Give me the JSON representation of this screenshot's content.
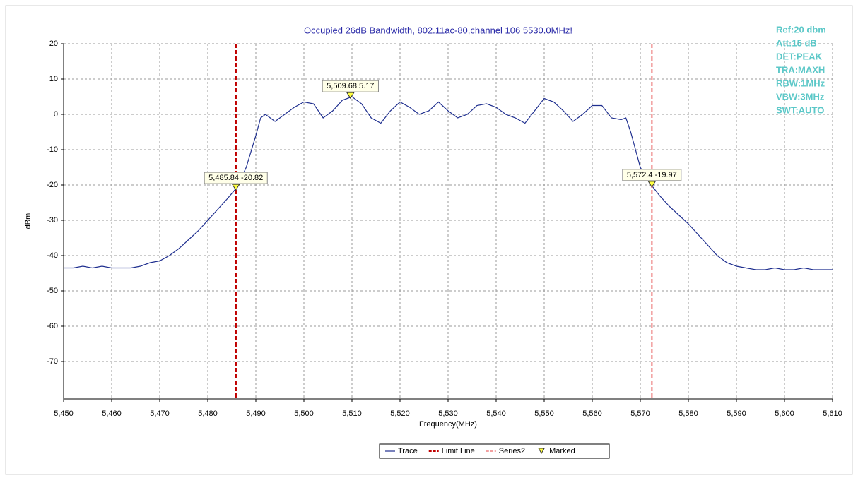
{
  "chart_data": {
    "type": "line",
    "title": "Occupied 26dB Bandwidth, 802.11ac-80,channel 106  5530.0MHz!",
    "x_label": "Frequency(MHz)",
    "y_label": "dBm",
    "annotations": [
      "Ref:20 dbm",
      "Att:15 dB",
      "DET:PEAK",
      "TRA:MAXH",
      "RBW:1MHz",
      "VBW:3MHz",
      "SWT:AUTO"
    ],
    "xlim": [
      5450,
      5610
    ],
    "ylim": [
      -80.6,
      20
    ],
    "xticks": [
      {
        "value": 5450,
        "label": "5,450"
      },
      {
        "value": 5460,
        "label": "5,460"
      },
      {
        "value": 5470,
        "label": "5,470"
      },
      {
        "value": 5480,
        "label": "5,480"
      },
      {
        "value": 5490,
        "label": "5,490"
      },
      {
        "value": 5500,
        "label": "5,500"
      },
      {
        "value": 5510,
        "label": "5,510"
      },
      {
        "value": 5520,
        "label": "5,520"
      },
      {
        "value": 5530,
        "label": "5,530"
      },
      {
        "value": 5540,
        "label": "5,540"
      },
      {
        "value": 5550,
        "label": "5,550"
      },
      {
        "value": 5560,
        "label": "5,560"
      },
      {
        "value": 5570,
        "label": "5,570"
      },
      {
        "value": 5580,
        "label": "5,580"
      },
      {
        "value": 5590,
        "label": "5,590"
      },
      {
        "value": 5600,
        "label": "5,600"
      },
      {
        "value": 5610,
        "label": "5,610"
      }
    ],
    "yticks": [
      20,
      10,
      0,
      -10,
      -20,
      -30,
      -40,
      -50,
      -60,
      -70
    ],
    "grid": true,
    "legend": "bottom",
    "series": [
      {
        "name": "Trace",
        "color": "#1f2f8f",
        "x": [
          5450,
          5452,
          5454,
          5456,
          5458,
          5460,
          5462,
          5464,
          5466,
          5468,
          5470,
          5472,
          5474,
          5476,
          5478,
          5480,
          5482,
          5484,
          5486,
          5488,
          5490,
          5491,
          5492,
          5494,
          5496,
          5498,
          5500,
          5502,
          5504,
          5506,
          5508,
          5510,
          5512,
          5514,
          5516,
          5518,
          5520,
          5522,
          5524,
          5526,
          5528,
          5530,
          5532,
          5534,
          5536,
          5538,
          5540,
          5542,
          5544,
          5546,
          5548,
          5550,
          5552,
          5554,
          5556,
          5558,
          5560,
          5562,
          5564,
          5566,
          5567,
          5568,
          5570,
          5572,
          5574,
          5576,
          5578,
          5580,
          5582,
          5584,
          5586,
          5588,
          5590,
          5592,
          5594,
          5596,
          5598,
          5600,
          5602,
          5604,
          5606,
          5608,
          5610
        ],
        "values": [
          -43.5,
          -43.5,
          -43,
          -43.5,
          -43,
          -43.5,
          -43.5,
          -43.5,
          -43,
          -42,
          -41.5,
          -40,
          -38,
          -35.5,
          -33,
          -30,
          -27,
          -24,
          -20.8,
          -15,
          -6,
          -1,
          0,
          -2,
          0,
          2,
          3.5,
          3,
          -1,
          1,
          4,
          5,
          3,
          -1,
          -2.5,
          1,
          3.5,
          2,
          0,
          1,
          3.5,
          1,
          -1,
          0,
          2.5,
          3,
          2,
          0,
          -1,
          -2.5,
          1,
          4.5,
          3.5,
          1,
          -2,
          0,
          2.5,
          2.5,
          -1,
          -1.5,
          -1,
          -5,
          -15,
          -19.5,
          -23,
          -26,
          -28.5,
          -31,
          -34,
          -37,
          -40,
          -42,
          -43,
          -43.5,
          -44,
          -44,
          -43.5,
          -44,
          -44,
          -43.5,
          -44,
          -44,
          -44
        ]
      },
      {
        "name": "Limit Line",
        "color": "#c00000",
        "x": [
          5485.84
        ]
      },
      {
        "name": "Series2",
        "color": "#f2a0a0",
        "x": [
          5572.4
        ]
      },
      {
        "name": "Marked",
        "color": "#ffff40",
        "x": [
          5485.84,
          5509.68,
          5572.4
        ],
        "values": [
          -20.82,
          5.17,
          -19.97
        ],
        "value_labels": [
          "5,485.84 -20.82",
          "5,509.68 5.17",
          "5,572.4 -19.97"
        ]
      }
    ]
  }
}
